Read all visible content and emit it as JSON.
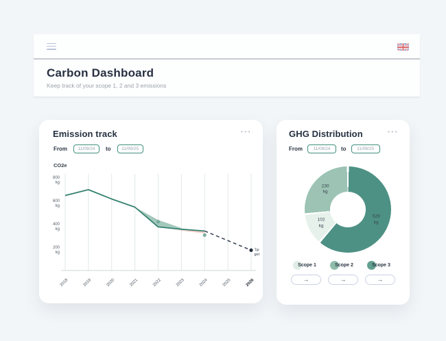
{
  "page_header": {
    "title": "Carbon Dashboard",
    "subtitle": "Keep track of your scope 1, 2 and 3 emissions"
  },
  "emission_card": {
    "title": "Emission track",
    "menu_dots": "•••",
    "date_filter": {
      "from_label": "From",
      "from_value": "11/09/24",
      "to_label": "to",
      "to_value": "11/09/25"
    },
    "unit_label": "CO2e"
  },
  "ghg_card": {
    "title": "GHG Distribution",
    "menu_dots": "•••",
    "date_filter": {
      "from_label": "From",
      "from_value": "11/09/24",
      "to_label": "to",
      "to_value": "11/09/25"
    },
    "legend": [
      {
        "label": "Scope 1",
        "color": "#e0ede6"
      },
      {
        "label": "Scope 2",
        "color": "#8fbcab"
      },
      {
        "label": "Scope 3",
        "color": "#63a08f"
      }
    ],
    "arrow_label": "→"
  },
  "chart_data": [
    {
      "type": "line",
      "title": "Emission track",
      "ylabel": "CO2e",
      "x_ticks": [
        2018,
        2019,
        2020,
        2021,
        2022,
        2023,
        2024,
        2025,
        2026
      ],
      "y_ticks": [
        {
          "label": "800",
          "unit": "kg",
          "value": 800
        },
        {
          "label": "600",
          "unit": "kg",
          "value": 600
        },
        {
          "label": "400",
          "unit": "kg",
          "value": 400
        },
        {
          "label": "200",
          "unit": "kg",
          "value": 200
        }
      ],
      "ylim": [
        0,
        830
      ],
      "grid": "vertical",
      "series": [
        {
          "name": "emissions-actual",
          "color": "#35806e",
          "x": [
            2018,
            2019,
            2020,
            2021,
            2022,
            2023,
            2024
          ],
          "values": [
            650,
            700,
            620,
            550,
            380,
            360,
            345
          ]
        },
        {
          "name": "emissions-band-upper",
          "color": "#8cbaab",
          "x": [
            2021,
            2022,
            2023
          ],
          "values": [
            550,
            440,
            370
          ]
        },
        {
          "name": "target-projection",
          "style": "dashed",
          "color": "#333c4e",
          "x": [
            2024,
            2026
          ],
          "values": [
            345,
            180
          ]
        }
      ],
      "markers": [
        {
          "x": 2022,
          "y": 425
        },
        {
          "x": 2024,
          "y": 310
        }
      ],
      "negative_region": [
        [
          2022.5,
          356
        ],
        [
          2024,
          345
        ],
        [
          2024,
          324
        ],
        [
          2022.9,
          350
        ]
      ],
      "annotation": {
        "label": "Target",
        "x": 2026,
        "y": 180
      }
    },
    {
      "type": "pie",
      "title": "GHG Distribution",
      "unit": "kg",
      "start_angle_deg": 0,
      "direction": "clockwise",
      "slices": [
        {
          "label": "Scope 3",
          "value": 528,
          "display": "528 kg",
          "color": "#4d9184"
        },
        {
          "label": "Scope 1",
          "value": 102,
          "display": "102 kg",
          "color": "#e6f1ec"
        },
        {
          "label": "Scope 2",
          "value": 230,
          "display": "230 kg",
          "color": "#9cc3b4"
        }
      ]
    }
  ]
}
